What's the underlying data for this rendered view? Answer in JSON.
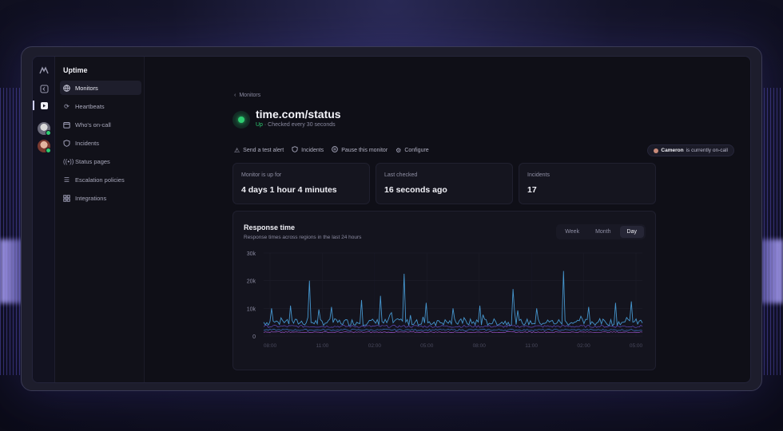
{
  "app": {
    "brand": "Uptime"
  },
  "sidebar": {
    "items": [
      {
        "label": "Monitors",
        "icon": "globe-icon",
        "active": true
      },
      {
        "label": "Heartbeats",
        "icon": "refresh-icon",
        "active": false
      },
      {
        "label": "Who's on-call",
        "icon": "calendar-icon",
        "active": false
      },
      {
        "label": "Incidents",
        "icon": "shield-icon",
        "active": false
      },
      {
        "label": "Status pages",
        "icon": "broadcast-icon",
        "active": false
      },
      {
        "label": "Escalation policies",
        "icon": "list-icon",
        "active": false
      },
      {
        "label": "Integrations",
        "icon": "grid-icon",
        "active": false
      }
    ]
  },
  "breadcrumb": {
    "label": "Monitors"
  },
  "monitor": {
    "title": "time.com/status",
    "status": "Up",
    "check_text": " · Checked every 30 seconds",
    "status_color": "#2ecc71"
  },
  "actions": [
    {
      "label": "Send a test alert",
      "icon": "warning-icon"
    },
    {
      "label": "Incidents",
      "icon": "shield-icon"
    },
    {
      "label": "Pause this monitor",
      "icon": "pause-icon"
    },
    {
      "label": "Configure",
      "icon": "gear-icon"
    }
  ],
  "oncall": {
    "name": "Cameron",
    "suffix": " is currently on-call"
  },
  "cards": [
    {
      "label": "Monitor is up for",
      "value": "4 days 1 hour 4 minutes"
    },
    {
      "label": "Last checked",
      "value": "16 seconds ago"
    },
    {
      "label": "Incidents",
      "value": "17"
    }
  ],
  "response_chart": {
    "title": "Response time",
    "subtitle": "Response times across regions in the last 24 hours",
    "ranges": [
      "Week",
      "Month",
      "Day"
    ],
    "selected_range": "Day"
  },
  "chart_data": {
    "type": "line",
    "title": "Response time",
    "ylim": [
      0,
      30000
    ],
    "y_ticks": [
      "30k",
      "20k",
      "10k",
      "0"
    ],
    "x_ticks": [
      "08:00",
      "11:00",
      "02:00",
      "05:00",
      "08:00",
      "11:00",
      "02:00",
      "05:00"
    ],
    "grid": true,
    "series": [
      {
        "color": "#4aa3e0",
        "baseline": 5000,
        "spikes": [
          {
            "x": 0.02,
            "y": 10000
          },
          {
            "x": 0.07,
            "y": 11000
          },
          {
            "x": 0.12,
            "y": 20000
          },
          {
            "x": 0.18,
            "y": 10500
          },
          {
            "x": 0.26,
            "y": 13000
          },
          {
            "x": 0.31,
            "y": 14500
          },
          {
            "x": 0.37,
            "y": 22500
          },
          {
            "x": 0.43,
            "y": 12000
          },
          {
            "x": 0.5,
            "y": 10000
          },
          {
            "x": 0.57,
            "y": 11000
          },
          {
            "x": 0.66,
            "y": 17000
          },
          {
            "x": 0.72,
            "y": 10000
          },
          {
            "x": 0.79,
            "y": 23500
          },
          {
            "x": 0.86,
            "y": 10500
          },
          {
            "x": 0.93,
            "y": 12000
          },
          {
            "x": 0.97,
            "y": 12500
          }
        ]
      },
      {
        "color": "#6a4fd0",
        "baseline": 3500,
        "spikes": []
      },
      {
        "color": "#3f7fd8",
        "baseline": 2200,
        "spikes": []
      },
      {
        "color": "#a55ad8",
        "baseline": 1400,
        "spikes": []
      }
    ]
  }
}
